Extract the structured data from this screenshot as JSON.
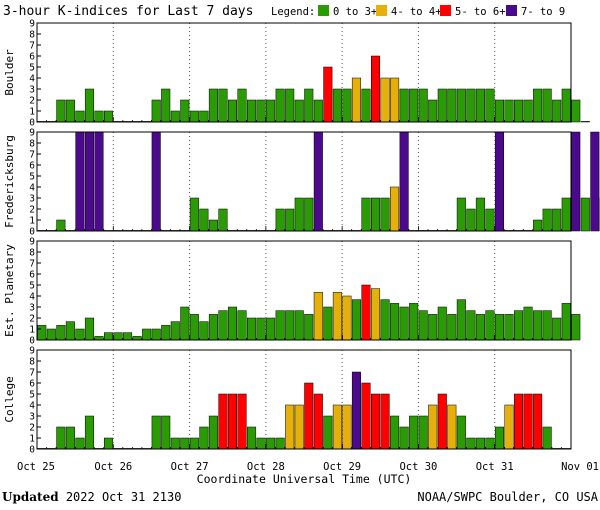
{
  "chart_data": {
    "type": "bar",
    "title": "3-hour K-indices for Last 7 days",
    "legend": {
      "label": "Legend:",
      "placement": "top-right",
      "items": [
        {
          "label": "0 to 3+",
          "color": "#2a9a05"
        },
        {
          "label": "4- to 4+",
          "color": "#e6b00a"
        },
        {
          "label": "5- to 6+",
          "color": "#ff0000"
        },
        {
          "label": "7- to 9",
          "color": "#4b0a8c"
        }
      ]
    },
    "xlabel": "Coordinate Universal Time (UTC)",
    "x_ticks": [
      "Oct 25",
      "Oct 26",
      "Oct 27",
      "Oct 28",
      "Oct 29",
      "Oct 30",
      "Oct 31",
      "Nov 01"
    ],
    "ylim": [
      0,
      9
    ],
    "y_ticks": [
      "0",
      "1",
      "2",
      "3",
      "4",
      "5",
      "6",
      "7",
      "8",
      "9"
    ],
    "grid": true,
    "bins_per_day": 8,
    "color_thresholds": {
      "yellow_from": 4,
      "red_from": 5,
      "purple_from": 7
    },
    "panels": [
      {
        "name": "Boulder",
        "values": [
          0,
          0,
          2,
          2,
          1,
          3,
          1,
          1,
          0,
          0,
          0,
          0,
          2,
          3,
          1,
          2,
          1,
          1,
          3,
          3,
          2,
          3,
          2,
          2,
          2,
          3,
          3,
          2,
          3,
          2,
          5,
          3,
          3,
          4,
          3,
          6,
          4,
          4,
          3,
          3,
          3,
          2,
          3,
          3,
          3,
          3,
          3,
          3,
          2,
          2,
          2,
          2,
          3,
          3,
          2,
          3,
          2,
          0
        ]
      },
      {
        "name": "Fredericksburg",
        "values": [
          0,
          0,
          1,
          0,
          9,
          9,
          9,
          0,
          0,
          0,
          0,
          0,
          9,
          0,
          0,
          0,
          3,
          2,
          1,
          2,
          0,
          0,
          0,
          0,
          0,
          2,
          2,
          3,
          3,
          9,
          0,
          0,
          0,
          0,
          3,
          3,
          3,
          4,
          9,
          0,
          0,
          0,
          0,
          0,
          3,
          2,
          3,
          2,
          9,
          0,
          0,
          0,
          1,
          2,
          2,
          3,
          9,
          3,
          9,
          3,
          0
        ]
      },
      {
        "name": "Est. Planetary",
        "values": [
          1.33,
          1,
          1.33,
          1.67,
          1,
          2,
          0.33,
          0.67,
          0.67,
          0.67,
          0.33,
          1,
          1,
          1.33,
          1.67,
          3,
          2.33,
          1.67,
          2.33,
          2.67,
          3,
          2.67,
          2,
          2,
          2,
          2.67,
          2.67,
          2.67,
          2.33,
          4.33,
          3,
          4.33,
          4,
          3.67,
          5,
          4.67,
          3.67,
          3.33,
          3,
          3.33,
          2.67,
          2.33,
          3,
          2.33,
          3.67,
          2.67,
          2.33,
          2.67,
          2.33,
          2.33,
          2.67,
          3,
          2.67,
          2.67,
          2,
          3.33,
          2.33
        ]
      },
      {
        "name": "College",
        "values": [
          0,
          0,
          2,
          2,
          1,
          3,
          0,
          1,
          0,
          0,
          0,
          0,
          3,
          3,
          1,
          1,
          1,
          2,
          3,
          5,
          5,
          5,
          2,
          1,
          1,
          1,
          4,
          4,
          6,
          5,
          3,
          4,
          4,
          7,
          6,
          5,
          5,
          3,
          2,
          3,
          3,
          4,
          5,
          4,
          3,
          1,
          1,
          1,
          2,
          4,
          5,
          5,
          5,
          2,
          0,
          0
        ]
      }
    ]
  },
  "footer": {
    "updated_label": "Updated",
    "updated_value": " 2022 Oct 31 2130",
    "source": "NOAA/SWPC Boulder, CO USA"
  }
}
